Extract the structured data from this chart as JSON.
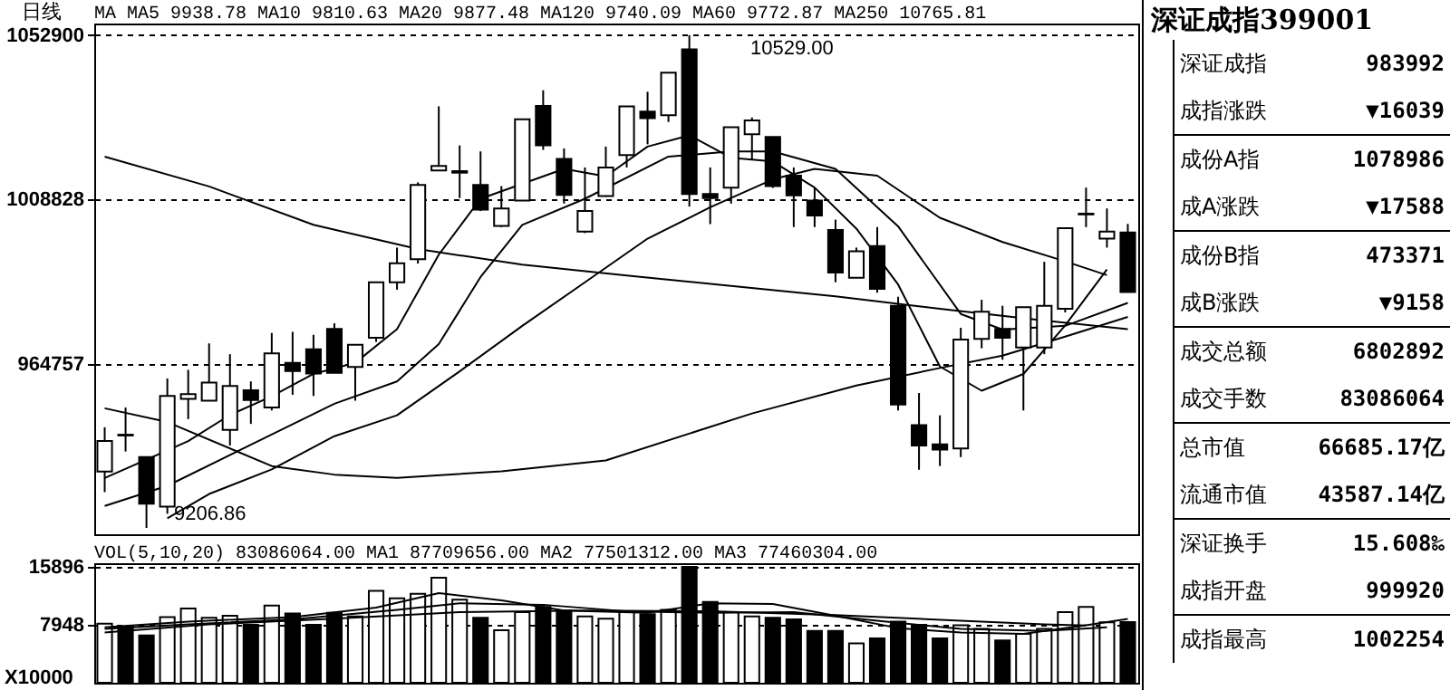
{
  "chart_data": [
    {
      "type": "candlestick",
      "title": "日线",
      "annotations": [
        "MA MA5 9938.78 MA10 9810.63 MA20 9877.48 MA120 9740.09 MA60 9772.87 MA250 10765.81",
        "10529.00",
        "9206.86"
      ],
      "categories": [
        null,
        null,
        null,
        null,
        null,
        null,
        null,
        null,
        null,
        null,
        null,
        null,
        null,
        null,
        null,
        null,
        null,
        null,
        null,
        null,
        null,
        null,
        null,
        null,
        null,
        null,
        null,
        null,
        null,
        null,
        null,
        null,
        null,
        null,
        null,
        null,
        null,
        null,
        null,
        null,
        null,
        null,
        null,
        null,
        null,
        null,
        null,
        null,
        null,
        null
      ],
      "ohlc": [
        [
          935800,
          947700,
          930300,
          944000
        ],
        [
          945500,
          953000,
          941200,
          945700
        ],
        [
          939700,
          939700,
          920686,
          927200
        ],
        [
          926400,
          960800,
          924500,
          956100
        ],
        [
          955300,
          963100,
          949900,
          956600
        ],
        [
          954800,
          970200,
          954800,
          959700
        ],
        [
          947000,
          967300,
          942800,
          958800
        ],
        [
          957600,
          960000,
          948600,
          955000
        ],
        [
          953000,
          973000,
          952200,
          967500
        ],
        [
          965000,
          973300,
          956400,
          962800
        ],
        [
          968600,
          972500,
          956100,
          962100
        ],
        [
          974100,
          975600,
          962300,
          962300
        ],
        [
          963900,
          969800,
          954800,
          969800
        ],
        [
          971700,
          986600,
          970600,
          986600
        ],
        [
          986600,
          995900,
          984600,
          991700
        ],
        [
          992800,
          1013400,
          991600,
          1012700
        ],
        [
          1016600,
          1033800,
          1016600,
          1017800
        ],
        [
          1016000,
          1023300,
          1009200,
          1016400
        ],
        [
          1012700,
          1021700,
          1005700,
          1006100
        ],
        [
          1001700,
          1012400,
          1001400,
          1006400
        ],
        [
          1008500,
          1030300,
          1008500,
          1030300
        ],
        [
          1033900,
          1038100,
          1022100,
          1023300
        ],
        [
          1019700,
          1022500,
          1007700,
          1010000
        ],
        [
          1000200,
          1017400,
          999800,
          1005700
        ],
        [
          1009700,
          1023000,
          1009500,
          1017400
        ],
        [
          1020700,
          1033800,
          1017400,
          1033800
        ],
        [
          1032400,
          1037700,
          1023600,
          1030600
        ],
        [
          1031400,
          1042800,
          1029600,
          1042800
        ],
        [
          1049100,
          1052900,
          1006900,
          1010300
        ],
        [
          1010300,
          1017400,
          1002200,
          1009200
        ],
        [
          1012000,
          1028200,
          1007700,
          1028200
        ],
        [
          1026300,
          1030800,
          1019400,
          1030000
        ],
        [
          1025600,
          1025600,
          1011900,
          1012400
        ],
        [
          1015200,
          1017400,
          1001400,
          1009900
        ],
        [
          1008500,
          1011900,
          1001400,
          1004500
        ],
        [
          1000600,
          1003400,
          986600,
          989200
        ],
        [
          987800,
          995900,
          987800,
          994900
        ],
        [
          996300,
          1001400,
          983800,
          984800
        ],
        [
          980300,
          982700,
          952200,
          953800
        ],
        [
          948300,
          956900,
          936300,
          942800
        ],
        [
          943100,
          950900,
          937300,
          941700
        ],
        [
          942000,
          974400,
          939700,
          971200
        ],
        [
          971400,
          981900,
          968900,
          978700
        ],
        [
          974100,
          980300,
          965800,
          971700
        ],
        [
          969100,
          979900,
          952200,
          979900
        ],
        [
          969100,
          992100,
          967300,
          980300
        ],
        [
          979500,
          1001100,
          978500,
          1001100
        ],
        [
          1004800,
          1012000,
          1001400,
          1005000
        ],
        [
          998300,
          1006400,
          995900,
          1000200
        ],
        [
          999920,
          1002254,
          983992,
          983992
        ]
      ],
      "colors": [
        "#ffffff",
        "#ffffff",
        "#000000",
        "#ffffff",
        "#ffffff",
        "#ffffff",
        "#ffffff",
        "#000000",
        "#ffffff",
        "#000000",
        "#000000",
        "#000000",
        "#ffffff",
        "#ffffff",
        "#ffffff",
        "#ffffff",
        "#ffffff",
        "#ffffff",
        "#000000",
        "#ffffff",
        "#ffffff",
        "#000000",
        "#000000",
        "#ffffff",
        "#ffffff",
        "#ffffff",
        "#000000",
        "#ffffff",
        "#000000",
        "#000000",
        "#ffffff",
        "#ffffff",
        "#000000",
        "#000000",
        "#000000",
        "#000000",
        "#ffffff",
        "#000000",
        "#000000",
        "#000000",
        "#000000",
        "#ffffff",
        "#ffffff",
        "#000000",
        "#ffffff",
        "#ffffff",
        "#ffffff",
        "#ffffff",
        "#ffffff",
        "#000000"
      ],
      "series": [
        {
          "type": "line",
          "color": "#000000",
          "values": [
            934100,
            null,
            939000,
            null,
            944000,
            null,
            951000,
            null,
            956000,
            null,
            962000,
            null,
            965000,
            null,
            974000,
            null,
            994000,
            null,
            1009000,
            null,
            1013000,
            null,
            1017000,
            null,
            1015000,
            null,
            1023000,
            null,
            1026000,
            null,
            1020000,
            null,
            1019000,
            null,
            1012000,
            null,
            1001000,
            null,
            986000,
            null,
            964000,
            null,
            957500,
            null,
            962000,
            null,
            975000,
            null,
            990000,
            null
          ]
        },
        {
          "type": "line",
          "color": "#000000",
          "values": [
            926600,
            null,
            null,
            932000,
            null,
            null,
            null,
            943000,
            null,
            null,
            null,
            954000,
            null,
            null,
            960000,
            null,
            970000,
            null,
            988000,
            null,
            1002000,
            null,
            null,
            1009000,
            null,
            null,
            null,
            1020300,
            null,
            null,
            1021700,
            null,
            1021700,
            null,
            null,
            1017000,
            null,
            null,
            1001600,
            null,
            null,
            978100,
            null,
            973900,
            null,
            null,
            974900,
            null,
            null,
            981063
          ]
        },
        {
          "type": "line",
          "color": "#000000",
          "values": [
            null,
            null,
            null,
            923300,
            null,
            929800,
            null,
            null,
            936400,
            null,
            null,
            945300,
            null,
            null,
            950900,
            null,
            null,
            962700,
            null,
            null,
            974900,
            null,
            null,
            986600,
            null,
            null,
            998300,
            null,
            null,
            1006700,
            null,
            null,
            1014200,
            null,
            1017000,
            null,
            null,
            1015200,
            null,
            null,
            1003900,
            null,
            null,
            997400,
            null,
            null,
            992200,
            null,
            988500,
            null
          ]
        },
        {
          "type": "line",
          "color": "#000000",
          "values": [
            952800,
            null,
            null,
            949100,
            null,
            null,
            null,
            null,
            937300,
            null,
            null,
            935000,
            null,
            null,
            934100,
            null,
            null,
            null,
            null,
            935900,
            null,
            null,
            null,
            null,
            938800,
            null,
            null,
            null,
            null,
            null,
            null,
            951400,
            null,
            null,
            null,
            null,
            958900,
            null,
            null,
            null,
            963600,
            null,
            null,
            966900,
            null,
            null,
            972000,
            null,
            null,
            977287
          ]
        },
        {
          "type": "line",
          "color": "#000000",
          "values": [
            1020300,
            null,
            null,
            null,
            null,
            1012300,
            null,
            null,
            null,
            null,
            1002000,
            null,
            null,
            null,
            null,
            995500,
            null,
            null,
            null,
            null,
            991300,
            null,
            null,
            null,
            null,
            988400,
            null,
            null,
            null,
            null,
            985600,
            null,
            null,
            null,
            null,
            982800,
            null,
            null,
            null,
            null,
            979500,
            null,
            null,
            null,
            null,
            976300,
            null,
            null,
            null,
            974009
          ]
        }
      ],
      "ylim": [
        919000,
        1056000
      ],
      "yticks": [
        {
          "value": 964757,
          "label": "964757"
        },
        {
          "value": 1008828,
          "label": "1008828"
        },
        {
          "value": 1052900,
          "label": "1052900"
        }
      ],
      "grid": "y",
      "tick_labels": "y"
    },
    {
      "type": "bar",
      "annotations": [
        "VOL(5,10,20) 83086064.00 MA1 87709656.00 MA2 77501312.00 MA3 77460304.00"
      ],
      "ylabel": "X10000",
      "categories": [
        null,
        null,
        null,
        null,
        null,
        null,
        null,
        null,
        null,
        null,
        null,
        null,
        null,
        null,
        null,
        null,
        null,
        null,
        null,
        null,
        null,
        null,
        null,
        null,
        null,
        null,
        null,
        null,
        null,
        null,
        null,
        null,
        null,
        null,
        null,
        null,
        null,
        null,
        null,
        null,
        null,
        null,
        null,
        null,
        null,
        null,
        null,
        null,
        null,
        null
      ],
      "series": [
        {
          "type": "bar",
          "values": [
            8100,
            7700,
            6500,
            9000,
            10200,
            8900,
            9200,
            7948,
            10600,
            9500,
            7948,
            9600,
            9100,
            12600,
            11600,
            12200,
            14400,
            11400,
            8900,
            7200,
            9700,
            10400,
            9900,
            9100,
            8800,
            9700,
            9400,
            10000,
            15896,
            11100,
            9700,
            9100,
            8900,
            8700,
            7100,
            7100,
            5400,
            6100,
            8400,
            7948,
            6100,
            7900,
            7400,
            5800,
            6700,
            7400,
            9700,
            10400,
            8300,
            8309
          ],
          "colors": [
            "#ffffff",
            "#000000",
            "#000000",
            "#ffffff",
            "#ffffff",
            "#ffffff",
            "#ffffff",
            "#000000",
            "#ffffff",
            "#000000",
            "#000000",
            "#000000",
            "#ffffff",
            "#ffffff",
            "#ffffff",
            "#ffffff",
            "#ffffff",
            "#ffffff",
            "#000000",
            "#ffffff",
            "#ffffff",
            "#000000",
            "#000000",
            "#ffffff",
            "#ffffff",
            "#ffffff",
            "#000000",
            "#ffffff",
            "#000000",
            "#000000",
            "#ffffff",
            "#ffffff",
            "#000000",
            "#000000",
            "#000000",
            "#000000",
            "#ffffff",
            "#000000",
            "#000000",
            "#000000",
            "#000000",
            "#ffffff",
            "#ffffff",
            "#000000",
            "#ffffff",
            "#ffffff",
            "#ffffff",
            "#ffffff",
            "#ffffff",
            "#000000"
          ]
        },
        {
          "type": "line",
          "color": "#000000",
          "values": [
            7600,
            null,
            null,
            null,
            8400,
            null,
            null,
            null,
            null,
            9000,
            null,
            null,
            null,
            10300,
            null,
            null,
            12300,
            null,
            null,
            11300,
            null,
            null,
            9900,
            null,
            null,
            null,
            9600,
            null,
            null,
            10900,
            null,
            null,
            10800,
            null,
            null,
            9200,
            null,
            null,
            7500,
            null,
            null,
            6900,
            null,
            null,
            6700,
            null,
            null,
            7900,
            null,
            8771
          ]
        },
        {
          "type": "line",
          "color": "#000000",
          "values": [
            7400,
            null,
            null,
            null,
            8000,
            null,
            null,
            null,
            null,
            8700,
            null,
            null,
            null,
            null,
            10000,
            null,
            null,
            10900,
            null,
            null,
            null,
            10700,
            null,
            null,
            null,
            9800,
            null,
            null,
            null,
            9600,
            null,
            null,
            null,
            9700,
            null,
            null,
            null,
            8500,
            null,
            null,
            null,
            7400,
            null,
            null,
            null,
            7100,
            null,
            null,
            7600,
            null
          ]
        },
        {
          "type": "line",
          "color": "#000000",
          "values": [
            6900,
            null,
            null,
            null,
            null,
            8000,
            null,
            null,
            null,
            null,
            null,
            8800,
            null,
            null,
            null,
            null,
            null,
            9700,
            null,
            null,
            null,
            null,
            null,
            9900,
            null,
            null,
            null,
            null,
            null,
            9800,
            null,
            null,
            null,
            null,
            null,
            9300,
            null,
            null,
            null,
            null,
            null,
            8500,
            null,
            null,
            null,
            8000,
            null,
            7850,
            null,
            null
          ]
        }
      ],
      "ylim": [
        0,
        16400
      ],
      "yticks": [
        {
          "value": 7948,
          "label": "7948"
        },
        {
          "value": 15896,
          "label": "15896"
        }
      ],
      "grid": "y",
      "tick_labels": "y"
    },
    {
      "type": "other",
      "title": "深证成指399001",
      "annotations": [
        "深证成指",
        "983992",
        "成指涨跌",
        "▼16039",
        "成份A指",
        "1078986",
        "成A涨跌",
        "▼17588",
        "成份B指",
        "473371",
        "成B涨跌",
        "▼9158",
        "成交总额",
        "6802892",
        "成交手数",
        "83086064",
        "总市值",
        "66685.17亿",
        "流通市值",
        "43587.14亿",
        "深证换手",
        "15.608‰",
        "成指开盘",
        "999920",
        "成指最高",
        "1002254"
      ]
    }
  ]
}
